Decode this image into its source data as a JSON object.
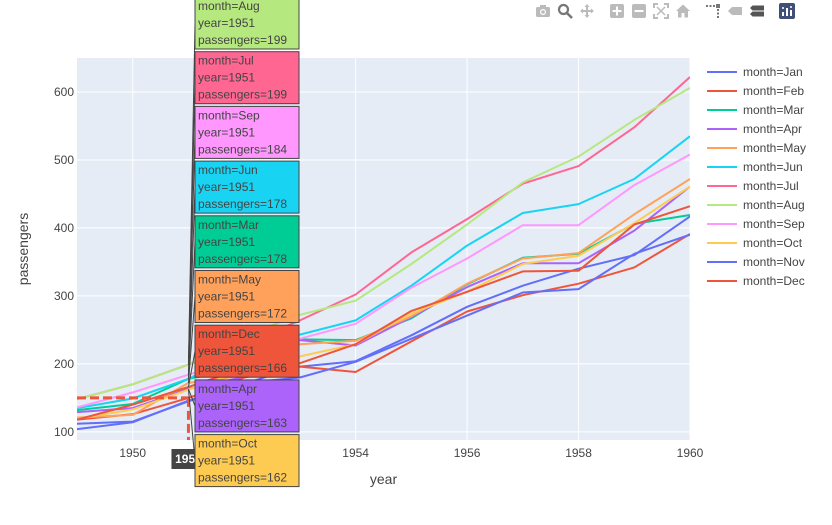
{
  "modebar": {
    "buttons": [
      {
        "name": "camera-icon",
        "title": "Download plot as a png"
      },
      {
        "name": "zoom-icon",
        "title": "Zoom",
        "active": true
      },
      {
        "name": "pan-icon",
        "title": "Pan"
      },
      {
        "gap": true
      },
      {
        "name": "zoom-in-icon",
        "title": "Zoom in"
      },
      {
        "name": "zoom-out-icon",
        "title": "Zoom out"
      },
      {
        "name": "autoscale-icon",
        "title": "Autoscale"
      },
      {
        "name": "home-icon",
        "title": "Reset axes"
      },
      {
        "gap": true
      },
      {
        "name": "spike-lines-icon",
        "title": "Toggle Spike Lines"
      },
      {
        "name": "hover-closest-icon",
        "title": "Show closest data on hover"
      },
      {
        "name": "hover-compare-icon",
        "title": "Compare data on hover",
        "active": true
      },
      {
        "gap": true
      },
      {
        "name": "plotly-logo-icon",
        "title": "Produced with Plotly"
      }
    ]
  },
  "chart_data": {
    "type": "line",
    "title": "",
    "xlabel": "year",
    "ylabel": "passengers",
    "xlim": [
      1949,
      1960
    ],
    "ylim": [
      88,
      650
    ],
    "xticks": [
      1950,
      1952,
      1954,
      1956,
      1958,
      1960
    ],
    "xtick_labels": [
      "1950",
      "1952",
      "1954",
      "1956",
      "1958",
      "1960"
    ],
    "yticks": [
      100,
      200,
      300,
      400,
      500,
      600
    ],
    "ytick_labels": [
      "100",
      "200",
      "300",
      "400",
      "500",
      "600"
    ],
    "grid": true,
    "legend_position": "right",
    "x": [
      1949,
      1950,
      1951,
      1952,
      1953,
      1954,
      1955,
      1956,
      1957,
      1958,
      1959,
      1960
    ],
    "series": [
      {
        "name": "month=Jan",
        "color": "#636efa",
        "values": [
          112,
          115,
          145,
          171,
          196,
          204,
          242,
          284,
          315,
          340,
          360,
          417
        ]
      },
      {
        "name": "month=Feb",
        "color": "#EF553B",
        "values": [
          118,
          126,
          150,
          180,
          196,
          188,
          233,
          277,
          301,
          318,
          342,
          391
        ]
      },
      {
        "name": "month=Mar",
        "color": "#00cc96",
        "values": [
          132,
          141,
          178,
          193,
          236,
          235,
          267,
          317,
          356,
          362,
          406,
          419
        ]
      },
      {
        "name": "month=Apr",
        "color": "#ab63fa",
        "values": [
          129,
          135,
          163,
          181,
          235,
          227,
          269,
          313,
          348,
          348,
          396,
          461
        ]
      },
      {
        "name": "month=May",
        "color": "#FFA15A",
        "values": [
          121,
          125,
          172,
          183,
          229,
          234,
          270,
          318,
          355,
          363,
          420,
          472
        ]
      },
      {
        "name": "month=Jun",
        "color": "#19d3f3",
        "values": [
          135,
          149,
          178,
          218,
          243,
          264,
          315,
          374,
          422,
          435,
          472,
          535
        ]
      },
      {
        "name": "month=Jul",
        "color": "#FF6692",
        "values": [
          148,
          170,
          199,
          230,
          264,
          302,
          364,
          413,
          465,
          491,
          548,
          622
        ]
      },
      {
        "name": "month=Aug",
        "color": "#B6E880",
        "values": [
          148,
          170,
          199,
          242,
          272,
          293,
          347,
          405,
          467,
          505,
          559,
          606
        ]
      },
      {
        "name": "month=Sep",
        "color": "#FF97FF",
        "values": [
          136,
          158,
          184,
          209,
          237,
          259,
          312,
          355,
          404,
          404,
          463,
          508
        ]
      },
      {
        "name": "month=Oct",
        "color": "#FECB52",
        "values": [
          119,
          133,
          162,
          191,
          211,
          229,
          274,
          306,
          347,
          359,
          407,
          461
        ]
      },
      {
        "name": "month=Nov",
        "color": "#636efa",
        "values": [
          104,
          114,
          146,
          172,
          180,
          203,
          237,
          271,
          305,
          310,
          362,
          390
        ]
      },
      {
        "name": "month=Dec",
        "color": "#EF553B",
        "values": [
          118,
          140,
          166,
          194,
          201,
          229,
          278,
          306,
          336,
          337,
          405,
          432
        ]
      }
    ],
    "hover": {
      "x": 1951,
      "x_label": "1951",
      "spike_y": 150,
      "spike_color": "#EF553B",
      "items": [
        {
          "lines": [
            "month=Aug",
            "year=1951",
            "passengers=199"
          ],
          "color": "#B6E880",
          "y": 199
        },
        {
          "lines": [
            "month=Jul",
            "year=1951",
            "passengers=199"
          ],
          "color": "#FF6692",
          "y": 199
        },
        {
          "lines": [
            "month=Sep",
            "year=1951",
            "passengers=184"
          ],
          "color": "#FF97FF",
          "y": 184
        },
        {
          "lines": [
            "month=Jun",
            "year=1951",
            "passengers=178"
          ],
          "color": "#19d3f3",
          "y": 178
        },
        {
          "lines": [
            "month=Mar",
            "year=1951",
            "passengers=178"
          ],
          "color": "#00cc96",
          "y": 178
        },
        {
          "lines": [
            "month=May",
            "year=1951",
            "passengers=172"
          ],
          "color": "#FFA15A",
          "y": 172
        },
        {
          "lines": [
            "month=Dec",
            "year=1951",
            "passengers=166"
          ],
          "color": "#EF553B",
          "y": 166
        },
        {
          "lines": [
            "month=Apr",
            "year=1951",
            "passengers=163"
          ],
          "color": "#ab63fa",
          "y": 163
        },
        {
          "lines": [
            "month=Oct",
            "year=1951",
            "passengers=162"
          ],
          "color": "#FECB52",
          "y": 162
        }
      ]
    }
  }
}
